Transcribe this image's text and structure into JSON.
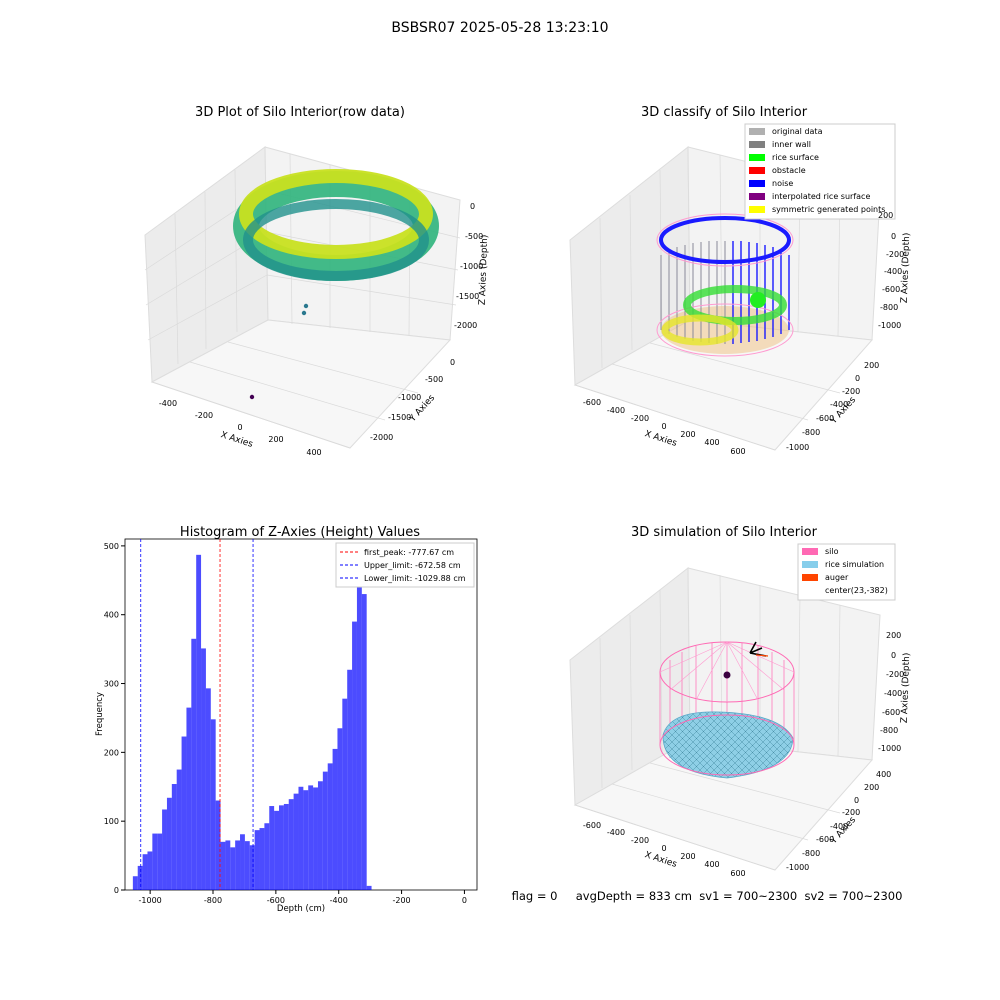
{
  "suptitle": "BSBSR07 2025-05-28 13:23:10",
  "status_text": "flag = 0     avgDepth = 833 cm  sv1 = 700~2300  sv2 = 700~2300",
  "chart_data": [
    {
      "type": "scatter",
      "title": "3D Plot of Silo Interior(row data)",
      "xlabel": "X Axies",
      "ylabel": "Y Axies",
      "zlabel": "Z Axies (Depth)",
      "x_ticks": [
        "-400",
        "-200",
        "0",
        "200",
        "400"
      ],
      "y_ticks": [
        "0",
        "-500",
        "-1000",
        "-1500",
        "-2000"
      ],
      "z_ticks": [
        "0",
        "-500",
        "-1000",
        "-1500",
        "-2000"
      ]
    },
    {
      "type": "scatter",
      "title": "3D classify of Silo Interior",
      "xlabel": "X Axies",
      "ylabel": "Y Axies",
      "zlabel": "Z Axies (Depth)",
      "x_ticks": [
        "-600",
        "-400",
        "-200",
        "0",
        "200",
        "400",
        "600"
      ],
      "y_ticks": [
        "200",
        "0",
        "-200",
        "-400",
        "-600",
        "-800",
        "-1000"
      ],
      "z_ticks": [
        "200",
        "0",
        "-200",
        "-400",
        "-600",
        "-800",
        "-1000"
      ],
      "legend_position": "upper-right",
      "legend": [
        {
          "label": "original data",
          "color": "#b0b0b0"
        },
        {
          "label": "inner wall",
          "color": "#808080"
        },
        {
          "label": "rice surface",
          "color": "#00ff00"
        },
        {
          "label": "obstacle",
          "color": "#ff0000"
        },
        {
          "label": "noise",
          "color": "#0000ff"
        },
        {
          "label": "interpolated rice surface",
          "color": "#800080"
        },
        {
          "label": "symmetric generated points",
          "color": "#ffff00"
        }
      ]
    },
    {
      "type": "bar",
      "title": "Histogram of Z-Axies (Height) Values",
      "xlabel": "Depth (cm)",
      "ylabel": "Frequency",
      "xlim": [
        -1080,
        40
      ],
      "ylim": [
        0,
        510
      ],
      "x_ticks": [
        -1000,
        -800,
        -600,
        -400,
        -200,
        0
      ],
      "y_ticks": [
        0,
        100,
        200,
        300,
        400,
        500
      ],
      "bar_color": "#0000ff",
      "bin_start": -1055,
      "bin_width": 15.5,
      "values": [
        20,
        35,
        52,
        56,
        82,
        82,
        117,
        134,
        154,
        175,
        223,
        265,
        365,
        487,
        351,
        293,
        248,
        130,
        70,
        72,
        62,
        72,
        81,
        71,
        65,
        87,
        90,
        97,
        122,
        115,
        123,
        125,
        132,
        140,
        150,
        145,
        152,
        149,
        158,
        172,
        184,
        205,
        235,
        278,
        320,
        390,
        445,
        430,
        6
      ],
      "legend_position": "upper-right",
      "vlines": [
        {
          "label": "first_peak: -777.67 cm",
          "x": -777.67,
          "color": "#ff0000"
        },
        {
          "label": "Upper_limit: -672.58 cm",
          "x": -672.58,
          "color": "#0000ff"
        },
        {
          "label": "Lower_limit: -1029.88 cm",
          "x": -1029.88,
          "color": "#0000ff"
        }
      ]
    },
    {
      "type": "scatter",
      "title": "3D simulation of Silo Interior",
      "xlabel": "X Axies",
      "ylabel": "Y Axies",
      "zlabel": "Z Axies (Depth)",
      "x_ticks": [
        "-600",
        "-400",
        "-200",
        "0",
        "200",
        "400",
        "600"
      ],
      "y_ticks": [
        "400",
        "200",
        "0",
        "-200",
        "-400",
        "-600",
        "-800",
        "-1000"
      ],
      "z_ticks": [
        "200",
        "0",
        "-200",
        "-400",
        "-600",
        "-800",
        "-1000"
      ],
      "legend_position": "upper-right",
      "legend": [
        {
          "label": "silo",
          "color": "#ff69b4"
        },
        {
          "label": "rice simulation",
          "color": "#87ceeb"
        },
        {
          "label": "auger",
          "color": "#ff4500"
        },
        {
          "label": "center(23,-382)",
          "color": "none"
        }
      ]
    }
  ]
}
